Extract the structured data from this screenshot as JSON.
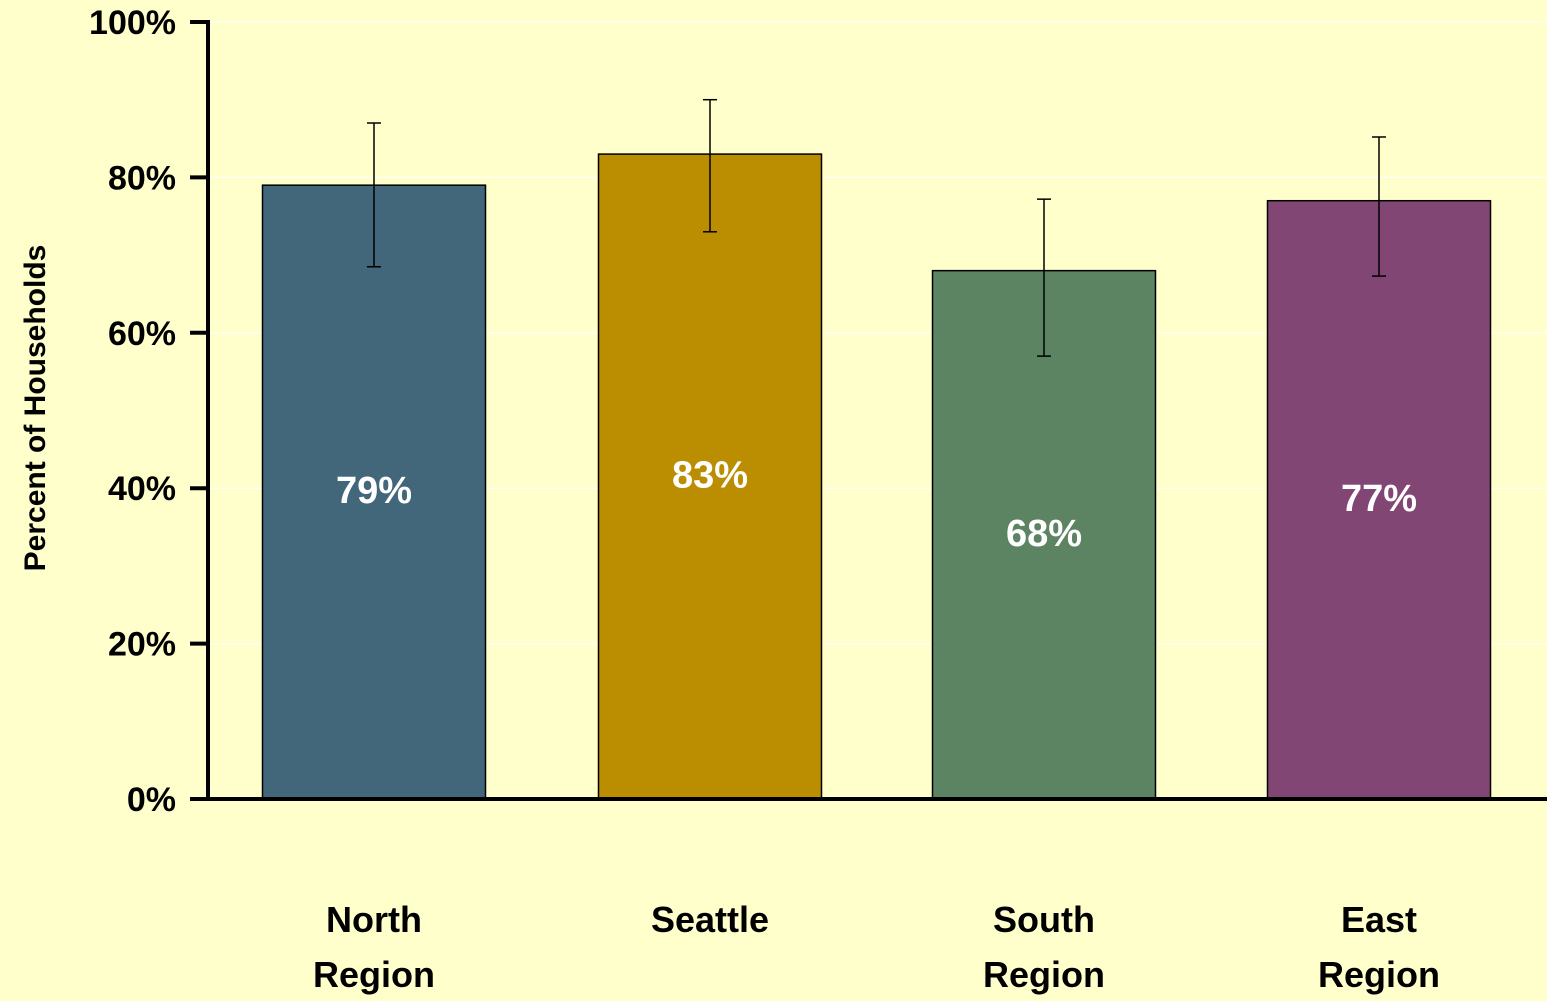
{
  "chart_data": {
    "type": "bar",
    "categories": [
      [
        "North",
        "Region"
      ],
      [
        "Seattle"
      ],
      [
        "South",
        "Region"
      ],
      [
        "East",
        "Region"
      ]
    ],
    "values": [
      79,
      83,
      68,
      77
    ],
    "value_labels": [
      "79%",
      "83%",
      "68%",
      "77%"
    ],
    "error_bars": [
      {
        "low": 68.5,
        "high": 87
      },
      {
        "low": 73,
        "high": 90
      },
      {
        "low": 57,
        "high": 77.2
      },
      {
        "low": 67.3,
        "high": 85.2
      }
    ],
    "bar_colors": [
      "#42677A",
      "#BA8E00",
      "#5C8462",
      "#824674"
    ],
    "value_label_color": "#FFFFFF",
    "ylabel": "Percent of Households",
    "yticks": [
      0,
      20,
      40,
      60,
      80,
      100
    ],
    "ytick_labels": [
      "0%",
      "20%",
      "40%",
      "60%",
      "80%",
      "100%"
    ],
    "ylim": [
      0,
      100
    ],
    "grid": true,
    "grid_color": "#FFFFFF",
    "background": "#FFFFCC",
    "axis_color": "#000000"
  }
}
